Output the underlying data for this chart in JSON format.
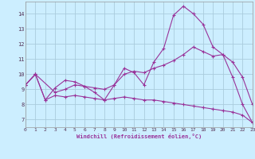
{
  "xlabel": "Windchill (Refroidissement éolien,°C)",
  "bg_color": "#cceeff",
  "grid_color": "#aaccdd",
  "line_color": "#993399",
  "xlim": [
    0,
    23
  ],
  "ylim": [
    6.5,
    14.8
  ],
  "yticks": [
    7,
    8,
    9,
    10,
    11,
    12,
    13,
    14
  ],
  "xticks": [
    0,
    1,
    2,
    3,
    4,
    5,
    6,
    7,
    8,
    9,
    10,
    11,
    12,
    13,
    14,
    15,
    16,
    17,
    18,
    19,
    20,
    21,
    22,
    23
  ],
  "series1_x": [
    0,
    1,
    2,
    3,
    4,
    5,
    6,
    7,
    8,
    9,
    10,
    11,
    12,
    13,
    14,
    15,
    16,
    17,
    18,
    19,
    20,
    21,
    22,
    23
  ],
  "series1_y": [
    9.3,
    10.0,
    8.3,
    9.1,
    9.6,
    9.5,
    9.2,
    8.8,
    8.3,
    9.3,
    10.4,
    10.1,
    9.3,
    10.8,
    11.7,
    13.9,
    14.5,
    14.0,
    13.3,
    11.8,
    11.3,
    9.8,
    8.0,
    6.8
  ],
  "series2_x": [
    0,
    1,
    3,
    4,
    5,
    6,
    7,
    8,
    9,
    10,
    11,
    12,
    13,
    14,
    15,
    16,
    17,
    18,
    19,
    20,
    21,
    22,
    23
  ],
  "series2_y": [
    9.3,
    10.0,
    8.8,
    9.0,
    9.3,
    9.2,
    9.1,
    9.0,
    9.3,
    10.0,
    10.2,
    10.1,
    10.4,
    10.6,
    10.9,
    11.3,
    11.8,
    11.5,
    11.2,
    11.3,
    10.8,
    9.8,
    8.0
  ],
  "series3_x": [
    0,
    1,
    2,
    3,
    4,
    5,
    6,
    7,
    8,
    9,
    10,
    11,
    12,
    13,
    14,
    15,
    16,
    17,
    18,
    19,
    20,
    21,
    22,
    23
  ],
  "series3_y": [
    9.3,
    10.0,
    8.3,
    8.6,
    8.5,
    8.6,
    8.5,
    8.4,
    8.3,
    8.4,
    8.5,
    8.4,
    8.3,
    8.3,
    8.2,
    8.1,
    8.0,
    7.9,
    7.8,
    7.7,
    7.6,
    7.5,
    7.3,
    6.8
  ]
}
